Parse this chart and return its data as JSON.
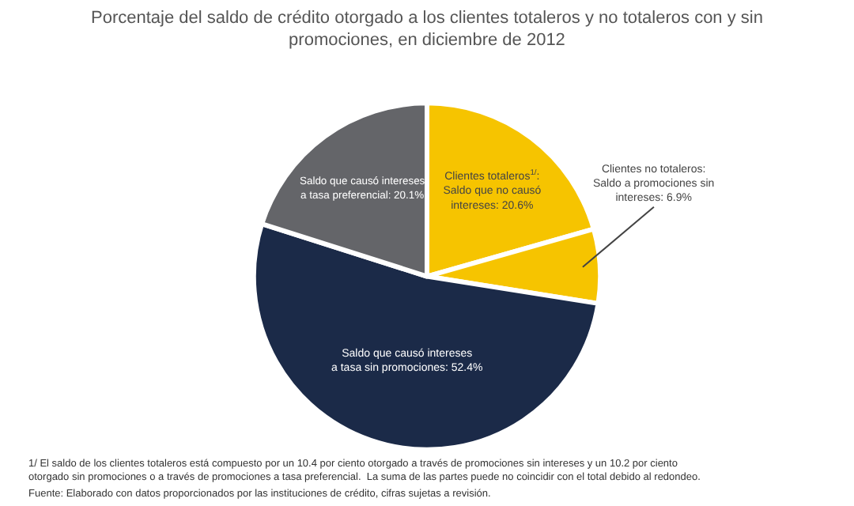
{
  "chart_data": {
    "type": "pie",
    "title": "Porcentaje del saldo de crédito otorgado a los clientes totaleros y no totaleros con y sin promociones, en diciembre de 2012",
    "categories": [
      "Clientes totaleros$^{1/}$: Saldo que no causó intereses",
      "Clientes no totaleros: Saldo a promociones sin intereses",
      "Saldo que causó intereses a tasa sin promociones",
      "Saldo que causó intereses a tasa preferencial"
    ],
    "values": [
      20.6,
      6.9,
      52.4,
      20.1
    ],
    "value_labels": [
      "20.6%",
      "6.9%",
      "52.4%",
      "20.1%"
    ],
    "colors": [
      "#f6c400",
      "#f6c400",
      "#1b2a48",
      "#646569"
    ],
    "legend": false,
    "annotations": [
      "1/ El saldo de los clientes totaleros está compuesto por un 10.4 por ciento otorgado a través de promociones sin intereses y un 10.2 por ciento otorgado sin promociones o a través de promociones a tasa preferencial.  La suma de las partes puede no coincidir con el total debido al redondeo.",
      "Fuente: Elaborado con datos proporcionados por las instituciones de crédito, cifras sujetas a revisión."
    ]
  }
}
